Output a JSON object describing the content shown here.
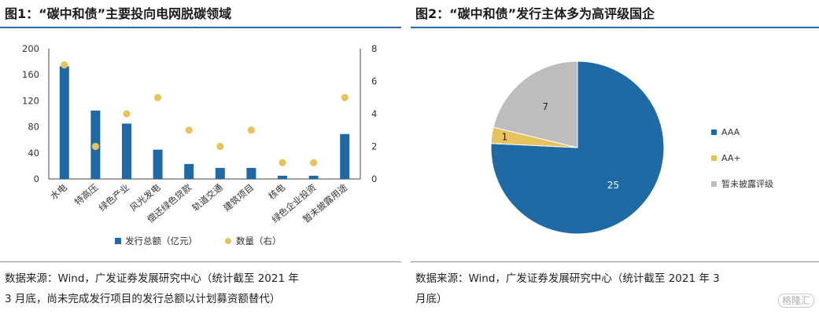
{
  "left": {
    "title": "图1：“碳中和债”主要投向电网脱碳领域",
    "source_line1": "数据来源：Wind，广发证券发展研究中心（统计截至 2021 年",
    "source_line2": "3 月底，尚未完成发行项目的发行总额以计划募资额替代）"
  },
  "right": {
    "title": "图2：“碳中和债”发行主体多为高评级国企",
    "source_line1": "数据来源：Wind，广发证券发展研究中心（统计截至 2021 年 3",
    "source_line2": "月底）"
  },
  "watermark": "格隆汇",
  "colors": {
    "bar": "#1f6aa5",
    "dot": "#e6c35c",
    "grey": "#bdbdbd",
    "rule": "#2c6aa0"
  },
  "chart_data": [
    {
      "type": "bar",
      "categories": [
        "水电",
        "特高压",
        "绿色产业",
        "风光发电",
        "偿还绿色贷款",
        "轨道交通",
        "建筑项目",
        "核电",
        "绿色企业投资",
        "暂未披露用途"
      ],
      "series": [
        {
          "name": "发行总额（亿元）",
          "axis": "left",
          "kind": "bar",
          "values": [
            173,
            105,
            85,
            45,
            23,
            17,
            17,
            5,
            5,
            69
          ]
        },
        {
          "name": "数量（右）",
          "axis": "right",
          "kind": "scatter",
          "values": [
            7,
            2,
            4,
            5,
            3,
            2,
            3,
            1,
            1,
            5
          ]
        }
      ],
      "y_left": {
        "min": 0,
        "max": 200,
        "ticks": [
          0,
          40,
          80,
          120,
          160,
          200
        ]
      },
      "y_right": {
        "min": 0,
        "max": 8,
        "ticks": [
          0,
          2,
          4,
          6,
          8
        ]
      },
      "legend_position": "bottom"
    },
    {
      "type": "pie",
      "slices": [
        {
          "label": "AAA",
          "value": 25,
          "color": "#1f6aa5"
        },
        {
          "label": "AA+",
          "value": 1,
          "color": "#e6c35c"
        },
        {
          "label": "暂未披露评级",
          "value": 7,
          "color": "#bdbdbd"
        }
      ],
      "legend_position": "right"
    }
  ]
}
